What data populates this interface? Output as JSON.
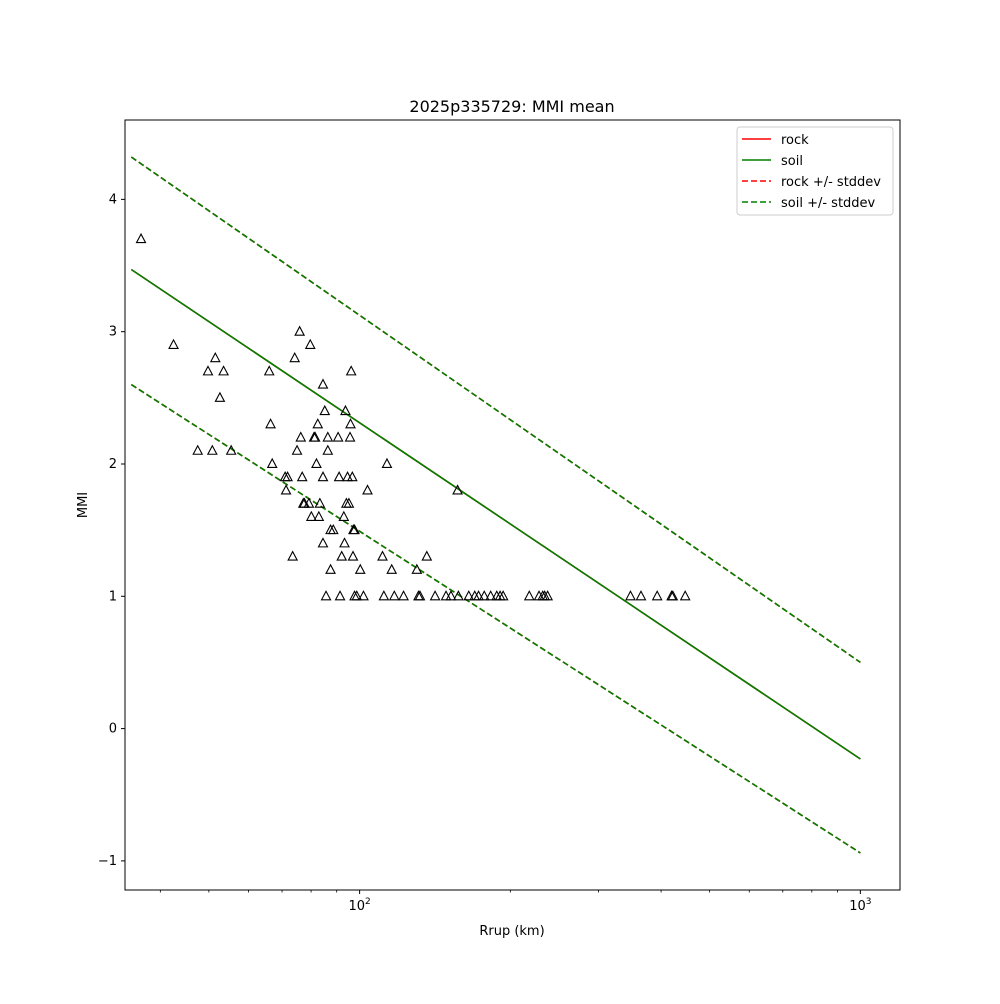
{
  "chart_data": {
    "type": "scatter",
    "title": "2025p335729: MMI mean",
    "xlabel": "Rrup (km)",
    "ylabel": "MMI",
    "xscale": "log",
    "xlim": [
      34,
      1200
    ],
    "ylim": [
      -1.22,
      4.6
    ],
    "x_ticks": [
      {
        "value": 100,
        "label": "10^2"
      },
      {
        "value": 1000,
        "label": "10^3"
      }
    ],
    "y_ticks": [
      {
        "value": -1,
        "label": "−1"
      },
      {
        "value": 0,
        "label": "0"
      },
      {
        "value": 1,
        "label": "1"
      },
      {
        "value": 2,
        "label": "2"
      },
      {
        "value": 3,
        "label": "3"
      },
      {
        "value": 4,
        "label": "4"
      }
    ],
    "grid": false,
    "legend_position": "top-right",
    "legend": [
      {
        "label": "rock",
        "color": "#ff0000",
        "style": "solid"
      },
      {
        "label": "soil",
        "color": "#008000",
        "style": "solid"
      },
      {
        "label": "rock +/- stddev",
        "color": "#ff0000",
        "style": "dashed"
      },
      {
        "label": "soil +/- stddev",
        "color": "#008000",
        "style": "dashed"
      }
    ],
    "lines": [
      {
        "name": "rock",
        "color": "#ff0000",
        "style": "solid",
        "x": [
          35,
          1000
        ],
        "y": [
          3.47,
          -0.23
        ]
      },
      {
        "name": "soil",
        "color": "#008000",
        "style": "solid",
        "x": [
          35,
          1000
        ],
        "y": [
          3.47,
          -0.23
        ]
      },
      {
        "name": "rock +/- stddev upper",
        "color": "#ff0000",
        "style": "dashed",
        "x": [
          35,
          1000
        ],
        "y": [
          4.32,
          0.5
        ]
      },
      {
        "name": "rock +/- stddev lower",
        "color": "#ff0000",
        "style": "dashed",
        "x": [
          35,
          1000
        ],
        "y": [
          2.6,
          -0.94
        ]
      },
      {
        "name": "soil +/- stddev upper",
        "color": "#008000",
        "style": "dashed",
        "x": [
          35,
          1000
        ],
        "y": [
          4.32,
          0.5
        ]
      },
      {
        "name": "soil +/- stddev lower",
        "color": "#008000",
        "style": "dashed",
        "x": [
          35,
          1000
        ],
        "y": [
          2.6,
          -0.94
        ]
      }
    ],
    "points": [
      [
        36.6,
        3.7
      ],
      [
        42.5,
        2.9
      ],
      [
        47.5,
        2.1
      ],
      [
        49.8,
        2.7
      ],
      [
        50.8,
        2.1
      ],
      [
        51.5,
        2.8
      ],
      [
        52.6,
        2.5
      ],
      [
        53.5,
        2.7
      ],
      [
        55.4,
        2.1
      ],
      [
        66.0,
        2.7
      ],
      [
        66.4,
        2.3
      ],
      [
        66.9,
        2.0
      ],
      [
        71.0,
        1.9
      ],
      [
        71.3,
        1.8
      ],
      [
        71.8,
        1.9
      ],
      [
        73.5,
        1.3
      ],
      [
        74.2,
        2.8
      ],
      [
        75.0,
        2.1
      ],
      [
        75.9,
        3.0
      ],
      [
        76.3,
        2.2
      ],
      [
        76.8,
        1.9
      ],
      [
        77.2,
        1.7
      ],
      [
        77.6,
        1.7
      ],
      [
        79.2,
        1.7
      ],
      [
        79.7,
        2.9
      ],
      [
        80.1,
        1.6
      ],
      [
        81.1,
        2.2
      ],
      [
        81.5,
        2.2
      ],
      [
        82.0,
        2.0
      ],
      [
        82.5,
        2.3
      ],
      [
        82.9,
        1.6
      ],
      [
        83.3,
        1.7
      ],
      [
        84.5,
        2.6
      ],
      [
        84.5,
        1.9
      ],
      [
        84.5,
        1.4
      ],
      [
        85.2,
        2.4
      ],
      [
        85.7,
        1.0
      ],
      [
        86.4,
        2.1
      ],
      [
        86.4,
        2.2
      ],
      [
        87.5,
        1.5
      ],
      [
        87.5,
        1.2
      ],
      [
        88.6,
        1.5
      ],
      [
        90.6,
        2.2
      ],
      [
        91.0,
        1.9
      ],
      [
        91.4,
        1.0
      ],
      [
        92.1,
        1.3
      ],
      [
        93.0,
        1.6
      ],
      [
        93.3,
        1.4
      ],
      [
        93.7,
        2.4
      ],
      [
        94.1,
        1.7
      ],
      [
        94.6,
        1.9
      ],
      [
        95.2,
        1.7
      ],
      [
        95.7,
        2.2
      ],
      [
        95.9,
        2.3
      ],
      [
        96.2,
        2.7
      ],
      [
        96.7,
        1.9
      ],
      [
        97.0,
        1.3
      ],
      [
        97.2,
        1.5
      ],
      [
        97.7,
        1.0
      ],
      [
        97.7,
        1.5
      ],
      [
        98.7,
        1.0
      ],
      [
        100.3,
        1.2
      ],
      [
        101.8,
        1.0
      ],
      [
        103.7,
        1.8
      ],
      [
        111.1,
        1.3
      ],
      [
        111.8,
        1.0
      ],
      [
        113.4,
        2.0
      ],
      [
        115.9,
        1.2
      ],
      [
        117.3,
        1.0
      ],
      [
        122.4,
        1.0
      ],
      [
        130.1,
        1.2
      ],
      [
        131.1,
        1.0
      ],
      [
        132.0,
        1.0
      ],
      [
        136.2,
        1.3
      ],
      [
        141.5,
        1.0
      ],
      [
        148.8,
        1.0
      ],
      [
        152.2,
        1.0
      ],
      [
        156.9,
        1.8
      ],
      [
        157.5,
        1.0
      ],
      [
        165.2,
        1.0
      ],
      [
        169.8,
        1.0
      ],
      [
        172.8,
        1.0
      ],
      [
        177.4,
        1.0
      ],
      [
        182.7,
        1.0
      ],
      [
        187.9,
        1.0
      ],
      [
        190.8,
        1.0
      ],
      [
        193.5,
        1.0
      ],
      [
        218.2,
        1.0
      ],
      [
        228.2,
        1.0
      ],
      [
        232.1,
        1.0
      ],
      [
        234.2,
        1.0
      ],
      [
        237.4,
        1.0
      ],
      [
        347.5,
        1.0
      ],
      [
        364.7,
        1.0
      ],
      [
        392.9,
        1.0
      ],
      [
        419.8,
        1.0
      ],
      [
        422.2,
        1.0
      ],
      [
        446.9,
        1.0
      ]
    ]
  }
}
